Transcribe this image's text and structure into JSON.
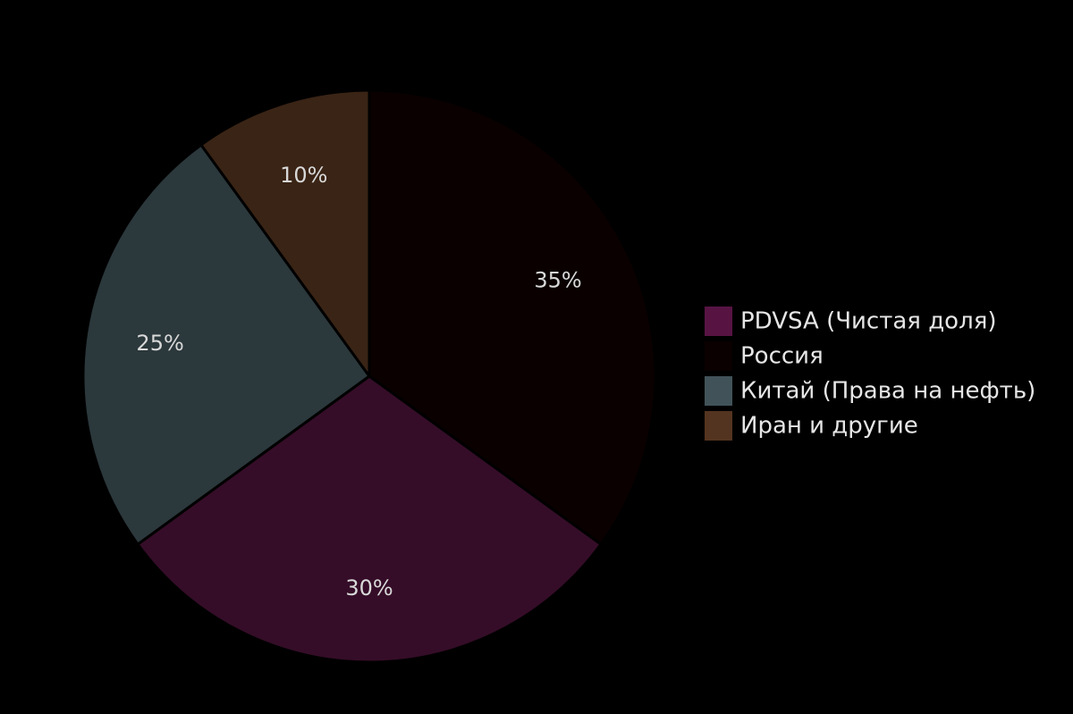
{
  "chart_data": {
    "type": "pie",
    "start_angle_deg": 0,
    "direction": "clockwise",
    "legend_position": "right",
    "slices": [
      {
        "name": "Россия",
        "value": 35,
        "label": "35%",
        "color": "#0a0000"
      },
      {
        "name": "PDVSA (Чистая доля)",
        "value": 30,
        "label": "30%",
        "color": "#350d28"
      },
      {
        "name": "Китай (Права на нефть)",
        "value": 25,
        "label": "25%",
        "color": "#2b383c"
      },
      {
        "name": "Иран и другие",
        "value": 10,
        "label": "10%",
        "color": "#3a2415"
      }
    ],
    "legend": [
      {
        "name": "PDVSA (Чистая доля)",
        "color": "#571443"
      },
      {
        "name": "Россия",
        "color": "#0a0000"
      },
      {
        "name": "Китай (Права на нефть)",
        "color": "#415359"
      },
      {
        "name": "Иран и другие",
        "color": "#533420"
      }
    ]
  }
}
